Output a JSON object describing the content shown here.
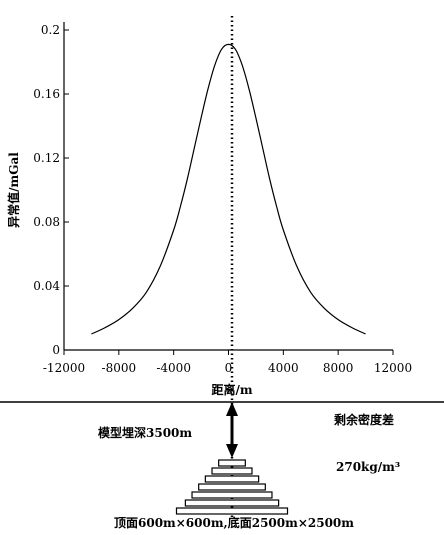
{
  "chart_data": {
    "type": "line",
    "xlabel": "距离/m",
    "ylabel": "异常值/mGal",
    "xlim": [
      -12000,
      12000
    ],
    "ylim": [
      0,
      0.2
    ],
    "xticks": [
      -12000,
      -8000,
      -4000,
      0,
      4000,
      8000,
      12000
    ],
    "yticks": [
      0,
      0.04,
      0.08,
      0.12,
      0.16,
      0.2
    ],
    "xtick_labels": [
      "-12000",
      "-8000",
      "-4000",
      "0",
      "4000",
      "8000",
      "12000"
    ],
    "ytick_labels": [
      "0",
      "0.04",
      "0.08",
      "0.12",
      "0.16",
      "0.2"
    ],
    "x": [
      -10000,
      -9000,
      -8000,
      -7000,
      -6000,
      -5000,
      -4000,
      -3500,
      -3000,
      -2500,
      -2000,
      -1500,
      -1000,
      -500,
      0,
      500,
      1000,
      1500,
      2000,
      2500,
      3000,
      3500,
      4000,
      5000,
      6000,
      7000,
      8000,
      9000,
      10000
    ],
    "y": [
      0.01,
      0.014,
      0.019,
      0.026,
      0.036,
      0.052,
      0.075,
      0.09,
      0.107,
      0.126,
      0.145,
      0.163,
      0.178,
      0.188,
      0.191,
      0.188,
      0.178,
      0.163,
      0.145,
      0.126,
      0.107,
      0.09,
      0.075,
      0.052,
      0.036,
      0.026,
      0.019,
      0.014,
      0.01
    ]
  },
  "model": {
    "density_label": "剩余密度差",
    "density_value": "270kg/m³",
    "depth_label": "模型埋深3500m",
    "size_label": "顶面600m×600m,底面2500m×2500m",
    "layer_widths_m": [
      600,
      900,
      1200,
      1500,
      1800,
      2100,
      2500
    ]
  }
}
